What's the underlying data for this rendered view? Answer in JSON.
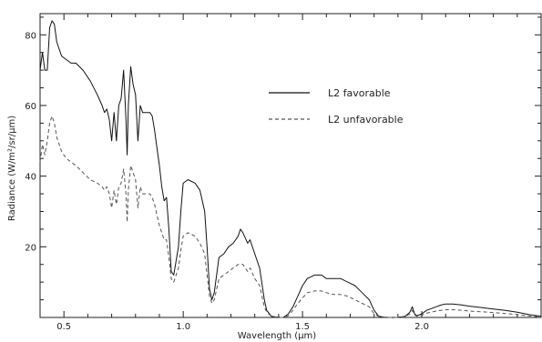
{
  "chart_data": {
    "type": "line",
    "title": "",
    "xlabel": "Wavelength (μm)",
    "ylabel": "Radiance (W/m²/sr/μm)",
    "xlim": [
      0.4,
      2.5
    ],
    "ylim": [
      0,
      86
    ],
    "x_ticks": [
      0.5,
      1.0,
      1.5,
      2.0
    ],
    "x_tick_labels": [
      "0.5",
      "1.0",
      "1.5",
      "2.0"
    ],
    "y_ticks": [
      20,
      40,
      60,
      80
    ],
    "y_tick_labels": [
      "20",
      "40",
      "60",
      "80"
    ],
    "grid": false,
    "legend_position": "upper-right",
    "series": [
      {
        "name": "L2 favorable",
        "style": "solid",
        "color": "#111111",
        "points": [
          [
            0.4,
            70
          ],
          [
            0.41,
            75
          ],
          [
            0.42,
            70
          ],
          [
            0.43,
            70
          ],
          [
            0.44,
            82
          ],
          [
            0.45,
            84
          ],
          [
            0.46,
            83
          ],
          [
            0.47,
            78
          ],
          [
            0.49,
            74
          ],
          [
            0.51,
            73
          ],
          [
            0.53,
            72
          ],
          [
            0.55,
            72
          ],
          [
            0.58,
            70
          ],
          [
            0.61,
            67
          ],
          [
            0.64,
            63
          ],
          [
            0.66,
            60
          ],
          [
            0.67,
            58
          ],
          [
            0.68,
            59
          ],
          [
            0.69,
            56
          ],
          [
            0.7,
            50
          ],
          [
            0.71,
            58
          ],
          [
            0.72,
            50
          ],
          [
            0.73,
            60
          ],
          [
            0.74,
            62
          ],
          [
            0.75,
            70
          ],
          [
            0.76,
            56
          ],
          [
            0.765,
            46
          ],
          [
            0.77,
            60
          ],
          [
            0.78,
            71
          ],
          [
            0.79,
            66
          ],
          [
            0.8,
            63
          ],
          [
            0.81,
            50
          ],
          [
            0.82,
            60
          ],
          [
            0.83,
            58
          ],
          [
            0.84,
            58
          ],
          [
            0.86,
            58
          ],
          [
            0.87,
            57
          ],
          [
            0.88,
            53
          ],
          [
            0.89,
            48
          ],
          [
            0.9,
            43
          ],
          [
            0.91,
            37
          ],
          [
            0.92,
            33
          ],
          [
            0.93,
            34
          ],
          [
            0.94,
            25
          ],
          [
            0.95,
            13
          ],
          [
            0.96,
            12
          ],
          [
            0.98,
            20
          ],
          [
            0.99,
            30
          ],
          [
            1.0,
            38
          ],
          [
            1.02,
            39
          ],
          [
            1.05,
            38
          ],
          [
            1.07,
            36
          ],
          [
            1.09,
            30
          ],
          [
            1.1,
            20
          ],
          [
            1.11,
            8
          ],
          [
            1.12,
            5
          ],
          [
            1.13,
            7
          ],
          [
            1.15,
            17
          ],
          [
            1.17,
            18
          ],
          [
            1.19,
            20
          ],
          [
            1.21,
            21
          ],
          [
            1.23,
            23
          ],
          [
            1.24,
            25
          ],
          [
            1.25,
            24
          ],
          [
            1.27,
            21
          ],
          [
            1.28,
            22
          ],
          [
            1.3,
            18
          ],
          [
            1.32,
            14
          ],
          [
            1.34,
            5
          ],
          [
            1.35,
            2
          ],
          [
            1.37,
            0.3
          ],
          [
            1.4,
            0
          ],
          [
            1.42,
            0
          ],
          [
            1.44,
            1
          ],
          [
            1.46,
            3
          ],
          [
            1.48,
            6
          ],
          [
            1.5,
            9
          ],
          [
            1.52,
            11
          ],
          [
            1.55,
            12
          ],
          [
            1.58,
            12
          ],
          [
            1.6,
            11
          ],
          [
            1.63,
            11
          ],
          [
            1.66,
            11
          ],
          [
            1.69,
            10
          ],
          [
            1.72,
            9
          ],
          [
            1.75,
            7
          ],
          [
            1.78,
            5
          ],
          [
            1.8,
            2
          ],
          [
            1.82,
            0.3
          ],
          [
            1.85,
            0
          ],
          [
            1.9,
            0
          ],
          [
            1.93,
            0.3
          ],
          [
            1.95,
            1.5
          ],
          [
            1.96,
            3
          ],
          [
            1.97,
            1
          ],
          [
            1.98,
            0.5
          ],
          [
            2.0,
            1
          ],
          [
            2.02,
            2
          ],
          [
            2.04,
            2.5
          ],
          [
            2.06,
            3
          ],
          [
            2.08,
            3.5
          ],
          [
            2.1,
            3.8
          ],
          [
            2.13,
            3.8
          ],
          [
            2.17,
            3.5
          ],
          [
            2.2,
            3.2
          ],
          [
            2.25,
            2.8
          ],
          [
            2.3,
            2.4
          ],
          [
            2.35,
            2
          ],
          [
            2.4,
            1.5
          ],
          [
            2.45,
            0.8
          ],
          [
            2.5,
            0.3
          ]
        ]
      },
      {
        "name": "L2 unfavorable",
        "style": "dashed",
        "color": "#555555",
        "points": [
          [
            0.4,
            44
          ],
          [
            0.41,
            49
          ],
          [
            0.42,
            46
          ],
          [
            0.43,
            50
          ],
          [
            0.44,
            55
          ],
          [
            0.45,
            57
          ],
          [
            0.46,
            55
          ],
          [
            0.47,
            51
          ],
          [
            0.49,
            47
          ],
          [
            0.51,
            45
          ],
          [
            0.53,
            44
          ],
          [
            0.55,
            43
          ],
          [
            0.58,
            41
          ],
          [
            0.61,
            39
          ],
          [
            0.64,
            38
          ],
          [
            0.66,
            37
          ],
          [
            0.67,
            36
          ],
          [
            0.68,
            37
          ],
          [
            0.69,
            35
          ],
          [
            0.7,
            31
          ],
          [
            0.71,
            36
          ],
          [
            0.72,
            32
          ],
          [
            0.73,
            37
          ],
          [
            0.74,
            38
          ],
          [
            0.75,
            42
          ],
          [
            0.76,
            35
          ],
          [
            0.765,
            27
          ],
          [
            0.77,
            36
          ],
          [
            0.78,
            43
          ],
          [
            0.79,
            41
          ],
          [
            0.8,
            39
          ],
          [
            0.81,
            31
          ],
          [
            0.82,
            37
          ],
          [
            0.83,
            35
          ],
          [
            0.84,
            35
          ],
          [
            0.86,
            35
          ],
          [
            0.87,
            34
          ],
          [
            0.88,
            32
          ],
          [
            0.89,
            29
          ],
          [
            0.9,
            26
          ],
          [
            0.91,
            24
          ],
          [
            0.92,
            22
          ],
          [
            0.93,
            22
          ],
          [
            0.94,
            17
          ],
          [
            0.95,
            11
          ],
          [
            0.96,
            10
          ],
          [
            0.98,
            14
          ],
          [
            0.99,
            19
          ],
          [
            1.0,
            23
          ],
          [
            1.02,
            24
          ],
          [
            1.05,
            23
          ],
          [
            1.07,
            21
          ],
          [
            1.09,
            18
          ],
          [
            1.1,
            12
          ],
          [
            1.11,
            6
          ],
          [
            1.12,
            4
          ],
          [
            1.13,
            5
          ],
          [
            1.15,
            11
          ],
          [
            1.17,
            12
          ],
          [
            1.19,
            13
          ],
          [
            1.21,
            14
          ],
          [
            1.23,
            15
          ],
          [
            1.24,
            15
          ],
          [
            1.25,
            15
          ],
          [
            1.27,
            13
          ],
          [
            1.28,
            14
          ],
          [
            1.3,
            11
          ],
          [
            1.32,
            9
          ],
          [
            1.34,
            3
          ],
          [
            1.35,
            1.5
          ],
          [
            1.37,
            0.3
          ],
          [
            1.4,
            0
          ],
          [
            1.42,
            0
          ],
          [
            1.44,
            0.5
          ],
          [
            1.46,
            2
          ],
          [
            1.48,
            4
          ],
          [
            1.5,
            5.5
          ],
          [
            1.52,
            7
          ],
          [
            1.55,
            7.5
          ],
          [
            1.58,
            7.5
          ],
          [
            1.6,
            7
          ],
          [
            1.63,
            6.5
          ],
          [
            1.66,
            6.5
          ],
          [
            1.69,
            6
          ],
          [
            1.72,
            5
          ],
          [
            1.75,
            4
          ],
          [
            1.78,
            3
          ],
          [
            1.8,
            1
          ],
          [
            1.82,
            0.3
          ],
          [
            1.85,
            0
          ],
          [
            1.9,
            0
          ],
          [
            1.93,
            0.2
          ],
          [
            1.95,
            1
          ],
          [
            1.96,
            2
          ],
          [
            1.97,
            0.7
          ],
          [
            1.98,
            0.3
          ],
          [
            2.0,
            0.6
          ],
          [
            2.02,
            1.2
          ],
          [
            2.04,
            1.5
          ],
          [
            2.06,
            1.8
          ],
          [
            2.08,
            2
          ],
          [
            2.1,
            2.2
          ],
          [
            2.13,
            2.2
          ],
          [
            2.17,
            2
          ],
          [
            2.2,
            1.8
          ],
          [
            2.25,
            1.6
          ],
          [
            2.3,
            1.4
          ],
          [
            2.35,
            1.1
          ],
          [
            2.4,
            0.8
          ],
          [
            2.45,
            0.4
          ],
          [
            2.5,
            0.1
          ]
        ]
      }
    ]
  }
}
